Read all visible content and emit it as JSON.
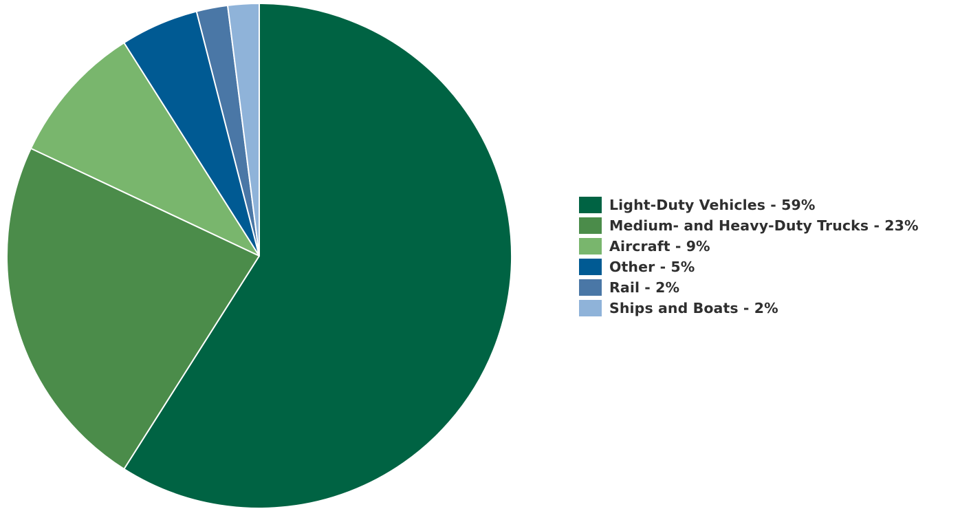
{
  "chart_data": {
    "type": "pie",
    "start": "12 o'clock",
    "direction": "clockwise",
    "legend_position": "right",
    "slices": [
      {
        "label": "Light-Duty Vehicles - 59%",
        "value": 59,
        "color": "#006343"
      },
      {
        "label": "Medium- and Heavy-Duty Trucks - 23%",
        "value": 23,
        "color": "#4b8c4a"
      },
      {
        "label": "Aircraft - 9%",
        "value": 9,
        "color": "#79b66d"
      },
      {
        "label": "Other - 5%",
        "value": 5,
        "color": "#005a93"
      },
      {
        "label": "Rail - 2%",
        "value": 2,
        "color": "#4a77a6"
      },
      {
        "label": "Ships and Boats - 2%",
        "value": 2,
        "color": "#8fb3d9"
      }
    ]
  }
}
